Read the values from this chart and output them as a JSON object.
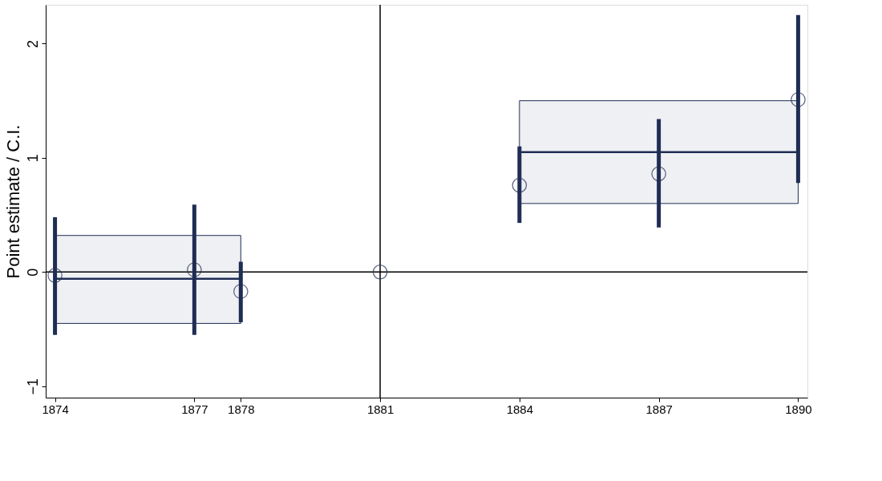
{
  "chart_data": {
    "type": "scatter",
    "ylabel": "Point estimate / C.I.",
    "xlim": [
      1873.8,
      1890.2
    ],
    "ylim": [
      -1.1,
      2.34
    ],
    "xticks": [
      1874,
      1877,
      1878,
      1881,
      1884,
      1887,
      1890
    ],
    "yticks": [
      -1,
      0,
      1,
      2
    ],
    "grid": false,
    "series": [
      {
        "marker": "circle",
        "color": "#1f2d55",
        "x": [
          1874,
          1877,
          1878,
          1881,
          1884,
          1887,
          1890
        ],
        "values": [
          -0.03,
          0.02,
          -0.17,
          0,
          0.76,
          0.86,
          1.51
        ],
        "errors": [
          [
            -0.55,
            0.48
          ],
          [
            -0.55,
            0.59
          ],
          [
            -0.44,
            0.09
          ],
          null,
          [
            0.43,
            1.1
          ],
          [
            0.39,
            1.34
          ],
          [
            0.78,
            2.25
          ]
        ]
      },
      {
        "type": "line",
        "color": "#1f2d55",
        "x": [
          1874,
          1878
        ],
        "values": [
          -0.06,
          -0.06
        ],
        "lower": [
          -0.45,
          -0.45
        ],
        "upper": [
          0.32,
          0.32
        ]
      },
      {
        "type": "line",
        "color": "#1f2d55",
        "x": [
          1884,
          1890
        ],
        "values": [
          1.05,
          1.05
        ],
        "lower": [
          0.6,
          0.6
        ],
        "upper": [
          1.5,
          1.5
        ]
      }
    ],
    "ref_lines": [
      {
        "axis": "y",
        "value": 0,
        "color": "#000000"
      },
      {
        "axis": "x",
        "value": 1881,
        "color": "#000000"
      }
    ]
  }
}
